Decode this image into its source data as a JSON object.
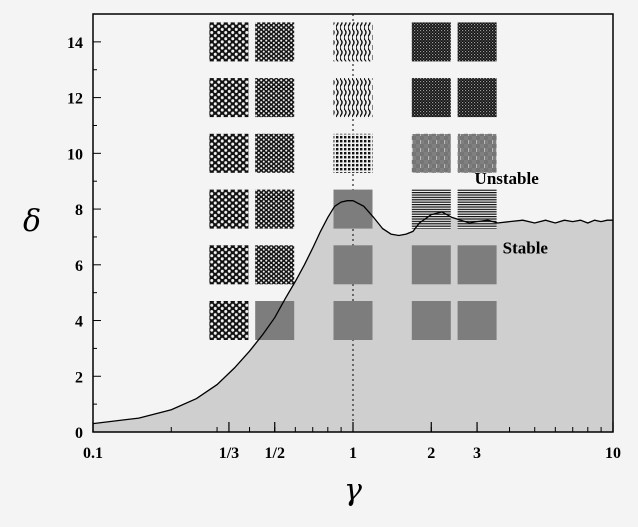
{
  "chart_data": {
    "type": "area",
    "title": "",
    "xlabel": "γ",
    "ylabel": "δ",
    "x_scale": "log",
    "xlim": [
      0.1,
      10
    ],
    "ylim": [
      0,
      15
    ],
    "x_ticks": [
      {
        "value": 0.1,
        "label": "0.1"
      },
      {
        "value": 0.3333,
        "label": "1/3"
      },
      {
        "value": 0.5,
        "label": "1/2"
      },
      {
        "value": 1,
        "label": "1"
      },
      {
        "value": 2,
        "label": "2"
      },
      {
        "value": 3,
        "label": "3"
      },
      {
        "value": 10,
        "label": "10"
      }
    ],
    "y_ticks": [
      {
        "value": 0,
        "label": "0"
      },
      {
        "value": 2,
        "label": "2"
      },
      {
        "value": 4,
        "label": "4"
      },
      {
        "value": 6,
        "label": "6"
      },
      {
        "value": 8,
        "label": "8"
      },
      {
        "value": 10,
        "label": "10"
      },
      {
        "value": 12,
        "label": "12"
      },
      {
        "value": 14,
        "label": "14"
      }
    ],
    "reference_line": {
      "x": 1,
      "style": "dotted"
    },
    "region_labels": [
      {
        "text": "Unstable",
        "x": 3.9,
        "y": 8.9
      },
      {
        "text": "Stable",
        "x": 4.6,
        "y": 6.4
      }
    ],
    "boundary": {
      "x": [
        0.1,
        0.15,
        0.2,
        0.25,
        0.3,
        0.35,
        0.4,
        0.45,
        0.5,
        0.55,
        0.6,
        0.65,
        0.7,
        0.75,
        0.8,
        0.85,
        0.9,
        0.95,
        1.0,
        1.1,
        1.2,
        1.3,
        1.4,
        1.5,
        1.6,
        1.7,
        1.8,
        2.0,
        2.2,
        2.4,
        2.6,
        2.8,
        3.0,
        3.3,
        3.6,
        4.0,
        4.5,
        5.0,
        5.5,
        6.0,
        6.5,
        7.0,
        7.5,
        8.0,
        8.5,
        9.0,
        9.5,
        10.0
      ],
      "y": [
        0.3,
        0.5,
        0.8,
        1.2,
        1.7,
        2.3,
        2.9,
        3.5,
        4.1,
        4.8,
        5.4,
        6.0,
        6.6,
        7.2,
        7.7,
        8.1,
        8.25,
        8.3,
        8.3,
        8.1,
        7.7,
        7.3,
        7.1,
        7.05,
        7.1,
        7.2,
        7.5,
        7.8,
        7.9,
        7.7,
        7.6,
        7.5,
        7.55,
        7.6,
        7.5,
        7.55,
        7.6,
        7.5,
        7.6,
        7.5,
        7.6,
        7.55,
        7.6,
        7.5,
        7.6,
        7.55,
        7.6,
        7.6
      ]
    },
    "pattern_insets": [
      {
        "x": 0.3333,
        "y": 14,
        "state": "hexagonal-dots"
      },
      {
        "x": 0.3333,
        "y": 12,
        "state": "hexagonal-dots"
      },
      {
        "x": 0.3333,
        "y": 10,
        "state": "hexagonal-dots"
      },
      {
        "x": 0.3333,
        "y": 8,
        "state": "hexagonal-dots"
      },
      {
        "x": 0.3333,
        "y": 6,
        "state": "hexagonal-dots"
      },
      {
        "x": 0.3333,
        "y": 4,
        "state": "hexagonal-dots"
      },
      {
        "x": 0.5,
        "y": 14,
        "state": "dense-dots"
      },
      {
        "x": 0.5,
        "y": 12,
        "state": "dense-dots"
      },
      {
        "x": 0.5,
        "y": 10,
        "state": "dense-dots"
      },
      {
        "x": 0.5,
        "y": 8,
        "state": "dense-dots"
      },
      {
        "x": 0.5,
        "y": 6,
        "state": "dense-dots"
      },
      {
        "x": 0.5,
        "y": 4,
        "state": "uniform"
      },
      {
        "x": 1,
        "y": 14,
        "state": "wavy-stripes"
      },
      {
        "x": 1,
        "y": 12,
        "state": "wavy-stripes"
      },
      {
        "x": 1,
        "y": 10,
        "state": "squares"
      },
      {
        "x": 1,
        "y": 8,
        "state": "uniform"
      },
      {
        "x": 1,
        "y": 6,
        "state": "uniform"
      },
      {
        "x": 1,
        "y": 4,
        "state": "uniform"
      },
      {
        "x": 2,
        "y": 14,
        "state": "fine-labyrinth"
      },
      {
        "x": 2,
        "y": 12,
        "state": "fine-labyrinth"
      },
      {
        "x": 2,
        "y": 10,
        "state": "mixed-stripes"
      },
      {
        "x": 2,
        "y": 8,
        "state": "stripes"
      },
      {
        "x": 2,
        "y": 6,
        "state": "uniform"
      },
      {
        "x": 2,
        "y": 4,
        "state": "uniform"
      },
      {
        "x": 3,
        "y": 14,
        "state": "fine-labyrinth"
      },
      {
        "x": 3,
        "y": 12,
        "state": "fine-labyrinth"
      },
      {
        "x": 3,
        "y": 10,
        "state": "mixed-stripes"
      },
      {
        "x": 3,
        "y": 8,
        "state": "stripes"
      },
      {
        "x": 3,
        "y": 6,
        "state": "uniform"
      },
      {
        "x": 3,
        "y": 4,
        "state": "uniform"
      }
    ],
    "colors": {
      "stable_fill": "#cfcfcf",
      "uniform_inset": "#7d7d7d",
      "pattern_dark": "#111111",
      "pattern_light": "#f0f0f0"
    }
  }
}
